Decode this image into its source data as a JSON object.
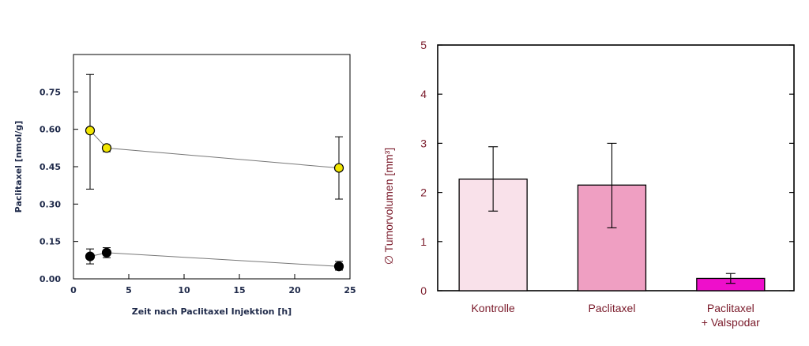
{
  "chart_data": [
    {
      "type": "scatter",
      "title": "",
      "xlabel": "Zeit nach Paclitaxel Injektion  [h]",
      "ylabel": "Paclitaxel [nmol/g]",
      "xlim": [
        0,
        25
      ],
      "ylim": [
        0,
        0.9
      ],
      "x_ticks": [
        "0",
        "5",
        "10",
        "15",
        "20",
        "25"
      ],
      "y_ticks": [
        "0.00",
        "0.15",
        "0.30",
        "0.45",
        "0.60",
        "0.75"
      ],
      "grid": false,
      "series": [
        {
          "color": "#f2e600",
          "points": [
            {
              "x": 1.5,
              "y": 0.595,
              "err_low": 0.36,
              "err_high": 0.82
            },
            {
              "x": 3,
              "y": 0.525,
              "err_low": 0.51,
              "err_high": 0.535
            },
            {
              "x": 24,
              "y": 0.445,
              "err_low": 0.32,
              "err_high": 0.57
            }
          ]
        },
        {
          "color": "#000000",
          "points": [
            {
              "x": 1.5,
              "y": 0.09,
              "err_low": 0.06,
              "err_high": 0.12
            },
            {
              "x": 3,
              "y": 0.105,
              "err_low": 0.085,
              "err_high": 0.125
            },
            {
              "x": 24,
              "y": 0.05,
              "err_low": 0.035,
              "err_high": 0.07
            }
          ]
        }
      ]
    },
    {
      "type": "bar",
      "title": "",
      "xlabel": "",
      "ylabel": "∅ Tumorvolumen [mm³]",
      "ylim": [
        0,
        5
      ],
      "y_ticks": [
        "0",
        "1",
        "2",
        "3",
        "4",
        "5"
      ],
      "grid": false,
      "categories": [
        {
          "line1": "Kontrolle",
          "line2": ""
        },
        {
          "line1": "Paclitaxel",
          "line2": ""
        },
        {
          "line1": "Paclitaxel",
          "line2": "+ Valspodar"
        }
      ],
      "values": [
        2.27,
        2.15,
        0.25
      ],
      "err_low": [
        1.62,
        1.28,
        0.15
      ],
      "err_high": [
        2.93,
        3.0,
        0.35
      ],
      "colors": [
        "#f9e1ea",
        "#ef9fc2",
        "#ee0fcb"
      ]
    }
  ]
}
